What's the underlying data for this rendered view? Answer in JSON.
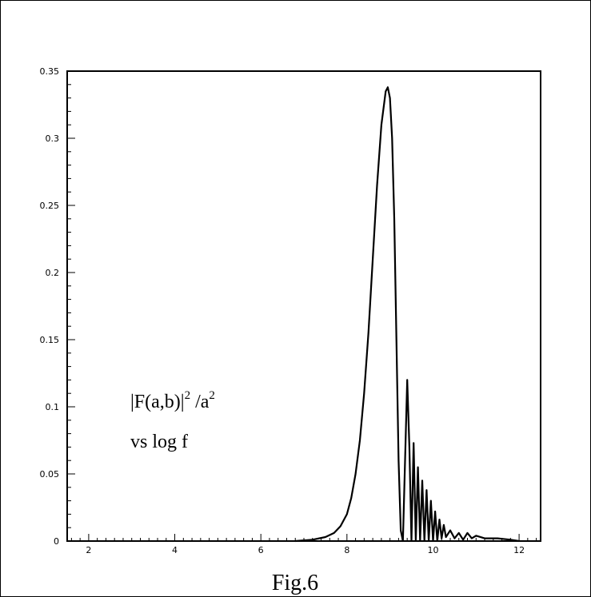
{
  "chart_data": {
    "type": "line",
    "title": "",
    "xlabel": "",
    "ylabel": "",
    "xlim": [
      1.5,
      12.5
    ],
    "ylim": [
      0,
      0.35
    ],
    "x_ticks": [
      2,
      4,
      6,
      8,
      10,
      12
    ],
    "x_tick_labels": [
      "2",
      "4",
      "6",
      "8",
      "10",
      "12"
    ],
    "y_ticks": [
      0,
      0.05,
      0.1,
      0.15,
      0.2,
      0.25,
      0.3,
      0.35
    ],
    "y_tick_labels": [
      "0",
      "0.05",
      "0.1",
      "0.15",
      "0.2",
      "0.25",
      "0.3",
      "0.35"
    ],
    "annotation": {
      "line1": {
        "main": "|F(a,b)|",
        "sup1": "2",
        "mid": " /a",
        "sup2": "2"
      },
      "line2": "vs  log f"
    },
    "caption": "Fig.6",
    "grid": false,
    "legend": "none",
    "series": [
      {
        "color": "#000000",
        "x": [
          6.8,
          7.2,
          7.5,
          7.7,
          7.85,
          8.0,
          8.1,
          8.2,
          8.3,
          8.4,
          8.5,
          8.6,
          8.7,
          8.8,
          8.9,
          8.95,
          9.0,
          9.05,
          9.1,
          9.15,
          9.2,
          9.25,
          9.3,
          9.35,
          9.4,
          9.45,
          9.5,
          9.55,
          9.6,
          9.65,
          9.7,
          9.75,
          9.8,
          9.85,
          9.9,
          9.95,
          10.0,
          10.05,
          10.1,
          10.15,
          10.2,
          10.25,
          10.3,
          10.4,
          10.5,
          10.6,
          10.7,
          10.8,
          10.9,
          11.0,
          11.2,
          11.5,
          11.8,
          12.0
        ],
        "y": [
          0.0,
          0.001,
          0.003,
          0.006,
          0.011,
          0.02,
          0.032,
          0.05,
          0.075,
          0.11,
          0.155,
          0.21,
          0.265,
          0.31,
          0.335,
          0.338,
          0.33,
          0.3,
          0.24,
          0.15,
          0.06,
          0.008,
          0.0,
          0.06,
          0.12,
          0.07,
          0.0,
          0.073,
          0.0,
          0.055,
          0.0,
          0.045,
          0.0,
          0.038,
          0.0,
          0.03,
          0.0,
          0.022,
          0.0,
          0.016,
          0.002,
          0.012,
          0.003,
          0.008,
          0.002,
          0.006,
          0.001,
          0.006,
          0.002,
          0.004,
          0.002,
          0.002,
          0.001,
          0.0
        ]
      }
    ]
  }
}
